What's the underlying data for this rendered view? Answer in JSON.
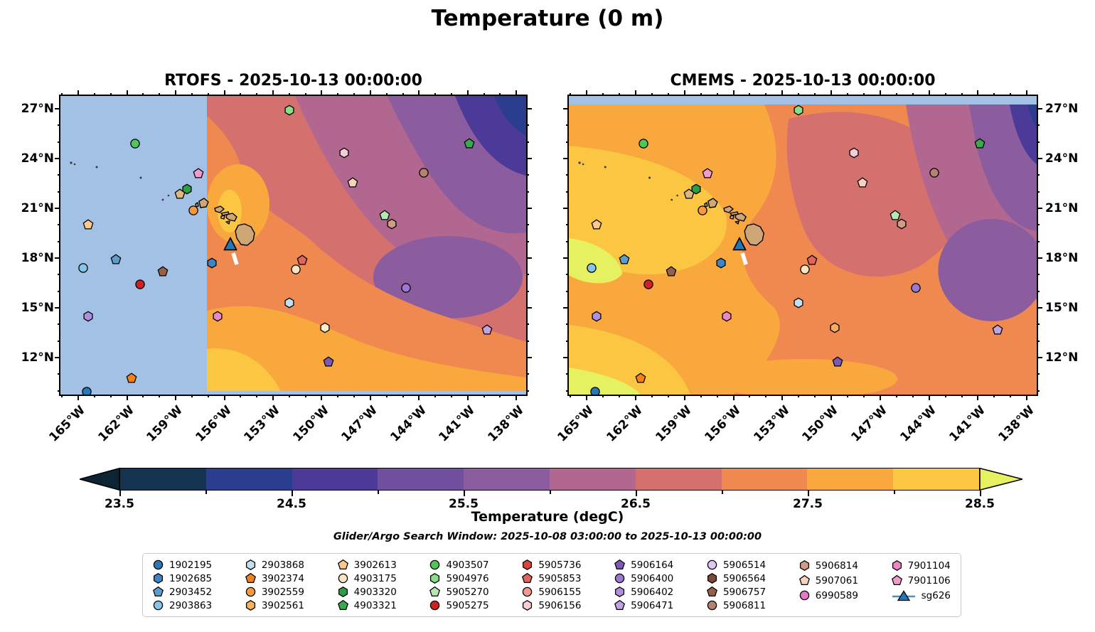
{
  "title": "Temperature (0 m)",
  "panels": [
    {
      "key": "rtofs",
      "title": "RTOFS - 2025-10-13 00:00:00"
    },
    {
      "key": "cmems",
      "title": "CMEMS - 2025-10-13 00:00:00"
    }
  ],
  "axes": {
    "lon_min": -166.1,
    "lon_max": -137.4,
    "lat_min": 9.77,
    "lat_max": 27.77,
    "x_major": [
      -165,
      -162,
      -159,
      -156,
      -153,
      -150,
      -147,
      -144,
      -141,
      -138
    ],
    "x_labels": [
      "165°W",
      "162°W",
      "159°W",
      "156°W",
      "153°W",
      "150°W",
      "147°W",
      "144°W",
      "141°W",
      "138°W"
    ],
    "y_major": [
      27,
      24,
      21,
      18,
      15,
      12
    ],
    "y_labels": [
      "27°N",
      "24°N",
      "21°N",
      "18°N",
      "15°N",
      "12°N"
    ]
  },
  "colorbar": {
    "label": "Temperature (degC)",
    "tick_labels": [
      "23.5",
      "24.5",
      "25.5",
      "26.5",
      "27.5",
      "28.5"
    ],
    "segments": [
      "#133350",
      "#2a3d8f",
      "#4b3a97",
      "#6f4f9e",
      "#8c5d9e",
      "#b16790",
      "#d4716e",
      "#ef8950",
      "#f8a83c",
      "#fbc742"
    ],
    "under_color": "#0d2435",
    "over_color": "#e6f161"
  },
  "subtitle": "Glider/Argo Search Window: 2025-10-08 03:00:00 to 2025-10-13 00:00:00",
  "legend": {
    "columns": [
      [
        {
          "id": "1902195",
          "shape": "circle",
          "color": "#2878b8"
        },
        {
          "id": "1902685",
          "shape": "hexagon",
          "color": "#3d85c6"
        },
        {
          "id": "2903452",
          "shape": "pentagon",
          "color": "#5b9ec9"
        },
        {
          "id": "2903863",
          "shape": "circle",
          "color": "#88c4e8"
        }
      ],
      [
        {
          "id": "2903868",
          "shape": "hexagon",
          "color": "#c3dff2"
        },
        {
          "id": "3902374",
          "shape": "pentagon",
          "color": "#f4801a"
        },
        {
          "id": "3902559",
          "shape": "circle",
          "color": "#fb9a3c"
        },
        {
          "id": "3902561",
          "shape": "hexagon",
          "color": "#fbb25c"
        }
      ],
      [
        {
          "id": "3902613",
          "shape": "pentagon",
          "color": "#fbc98b"
        },
        {
          "id": "4903175",
          "shape": "circle",
          "color": "#fde3c3"
        },
        {
          "id": "4903320",
          "shape": "hexagon",
          "color": "#2c9e44"
        },
        {
          "id": "4903321",
          "shape": "pentagon",
          "color": "#3aa94f"
        }
      ],
      [
        {
          "id": "4903507",
          "shape": "circle",
          "color": "#52c45c"
        },
        {
          "id": "5904976",
          "shape": "hexagon",
          "color": "#8ade8a"
        },
        {
          "id": "5905270",
          "shape": "pentagon",
          "color": "#b2e8b2"
        },
        {
          "id": "5905275",
          "shape": "circle",
          "color": "#cc2222"
        }
      ],
      [
        {
          "id": "5905736",
          "shape": "hexagon",
          "color": "#d9453c"
        },
        {
          "id": "5905853",
          "shape": "pentagon",
          "color": "#e0655c"
        },
        {
          "id": "5906155",
          "shape": "circle",
          "color": "#f09a96"
        },
        {
          "id": "5906156",
          "shape": "hexagon",
          "color": "#f7cdd3"
        }
      ],
      [
        {
          "id": "5906164",
          "shape": "pentagon",
          "color": "#7d59b5"
        },
        {
          "id": "5906400",
          "shape": "circle",
          "color": "#9b78d2"
        },
        {
          "id": "5906402",
          "shape": "hexagon",
          "color": "#b090dc"
        },
        {
          "id": "5906471",
          "shape": "pentagon",
          "color": "#bfa3e3"
        }
      ],
      [
        {
          "id": "5906514",
          "shape": "circle",
          "color": "#ddc7f5"
        },
        {
          "id": "5906564",
          "shape": "hexagon",
          "color": "#7a4a3d"
        },
        {
          "id": "5906757",
          "shape": "pentagon",
          "color": "#96604a"
        },
        {
          "id": "5906811",
          "shape": "circle",
          "color": "#b5826e"
        }
      ],
      [
        {
          "id": "5906814",
          "shape": "hexagon",
          "color": "#cf9d85"
        },
        {
          "id": "5907061",
          "shape": "pentagon",
          "color": "#f8d0bc"
        },
        {
          "id": "6990589",
          "shape": "circle",
          "color": "#e579c6"
        }
      ],
      [
        {
          "id": "7901104",
          "shape": "hexagon",
          "color": "#ec87c6"
        },
        {
          "id": "7901106",
          "shape": "pentagon",
          "color": "#f19ccd"
        },
        {
          "id": "sg626",
          "shape": "glider",
          "color": "#2277b4"
        }
      ]
    ]
  },
  "chart_data": {
    "type": "heatmap",
    "title": "Temperature (0 m)",
    "panels": [
      "RTOFS - 2025-10-13 00:00:00",
      "CMEMS - 2025-10-13 00:00:00"
    ],
    "x_axis": {
      "label": "longitude",
      "tick_labels": [
        "165°W",
        "162°W",
        "159°W",
        "156°W",
        "153°W",
        "150°W",
        "147°W",
        "144°W",
        "141°W",
        "138°W"
      ],
      "range_deg_west": [
        166.1,
        137.4
      ]
    },
    "y_axis": {
      "label": "latitude",
      "tick_labels": [
        "27°N",
        "24°N",
        "21°N",
        "18°N",
        "15°N",
        "12°N"
      ],
      "range_deg_north": [
        9.8,
        27.8
      ]
    },
    "colorbar": {
      "label": "Temperature (degC)",
      "ticks": [
        23.5,
        24.5,
        25.5,
        26.5,
        27.5,
        28.5
      ],
      "range": [
        23.5,
        28.5
      ]
    },
    "rtofs_nodata_region": "west of ~157°W shown as blank light blue",
    "cmems_nodata_region": "thin strip north of ~27.3°N shown as blank light blue",
    "markers": [
      {
        "lon": -161.5,
        "lat": 24.9,
        "shape": "circle",
        "color": "#52c45c"
      },
      {
        "lon": -152.0,
        "lat": 26.9,
        "shape": "hexagon",
        "color": "#8ade8a"
      },
      {
        "lon": -157.6,
        "lat": 23.1,
        "shape": "pentagon",
        "color": "#f19ccd"
      },
      {
        "lon": -158.3,
        "lat": 22.15,
        "shape": "hexagon",
        "color": "#2c9e44"
      },
      {
        "lon": -158.75,
        "lat": 21.85,
        "shape": "pentagon",
        "color": "#dcb77f"
      },
      {
        "lon": -157.9,
        "lat": 20.85,
        "shape": "circle",
        "color": "#fb9a3c"
      },
      {
        "lon": -164.4,
        "lat": 20.0,
        "shape": "pentagon",
        "color": "#fbc98b"
      },
      {
        "lon": -148.6,
        "lat": 24.35,
        "shape": "hexagon",
        "color": "#f7cdd3"
      },
      {
        "lon": -148.1,
        "lat": 22.55,
        "shape": "pentagon",
        "color": "#f8d0bc"
      },
      {
        "lon": -140.9,
        "lat": 24.9,
        "shape": "pentagon",
        "color": "#3aa94f"
      },
      {
        "lon": -143.7,
        "lat": 23.15,
        "shape": "circle",
        "color": "#b5826e"
      },
      {
        "lon": -146.1,
        "lat": 20.55,
        "shape": "pentagon",
        "color": "#b2e8b2"
      },
      {
        "lon": -145.7,
        "lat": 20.05,
        "shape": "hexagon",
        "color": "#cf9d85"
      },
      {
        "lon": -162.7,
        "lat": 17.9,
        "shape": "pentagon",
        "color": "#5b9ec9"
      },
      {
        "lon": -164.7,
        "lat": 17.4,
        "shape": "circle",
        "color": "#88c4e8"
      },
      {
        "lon": -159.8,
        "lat": 17.2,
        "shape": "pentagon",
        "color": "#96604a"
      },
      {
        "lon": -161.2,
        "lat": 16.4,
        "shape": "circle",
        "color": "#cc2222"
      },
      {
        "lon": -164.4,
        "lat": 14.5,
        "shape": "hexagon",
        "color": "#b090dc"
      },
      {
        "lon": -161.7,
        "lat": 10.75,
        "shape": "pentagon",
        "color": "#f4801a"
      },
      {
        "lon": -164.5,
        "lat": 9.95,
        "shape": "circle",
        "color": "#2878b8"
      },
      {
        "lon": -156.75,
        "lat": 17.7,
        "shape": "hexagon",
        "color": "#3d85c6"
      },
      {
        "lon": -156.4,
        "lat": 14.5,
        "shape": "hexagon",
        "color": "#ec87c6"
      },
      {
        "lon": -151.2,
        "lat": 17.85,
        "shape": "pentagon",
        "color": "#e0655c"
      },
      {
        "lon": -151.6,
        "lat": 17.3,
        "shape": "circle",
        "color": "#fde3c3"
      },
      {
        "lon": -152.0,
        "lat": 15.3,
        "shape": "hexagon",
        "color": "#c3dff2"
      },
      {
        "lon": -144.8,
        "lat": 16.2,
        "shape": "circle",
        "color": "#9b78d2"
      },
      {
        "lon": -149.8,
        "lat": 13.8,
        "shape": "hexagon",
        "colors": {
          "rtofs": "#fdeec9",
          "cmems": "#f9ab5e"
        }
      },
      {
        "lon": -149.6,
        "lat": 11.75,
        "shape": "pentagon",
        "color": "#7d59b5"
      },
      {
        "lon": -139.8,
        "lat": 13.65,
        "shape": "pentagon",
        "color": "#bfa3e3"
      },
      {
        "lon": -155.62,
        "lat": 18.85,
        "shape": "triangle",
        "color": "#2277b4",
        "label": "sg626"
      }
    ]
  }
}
